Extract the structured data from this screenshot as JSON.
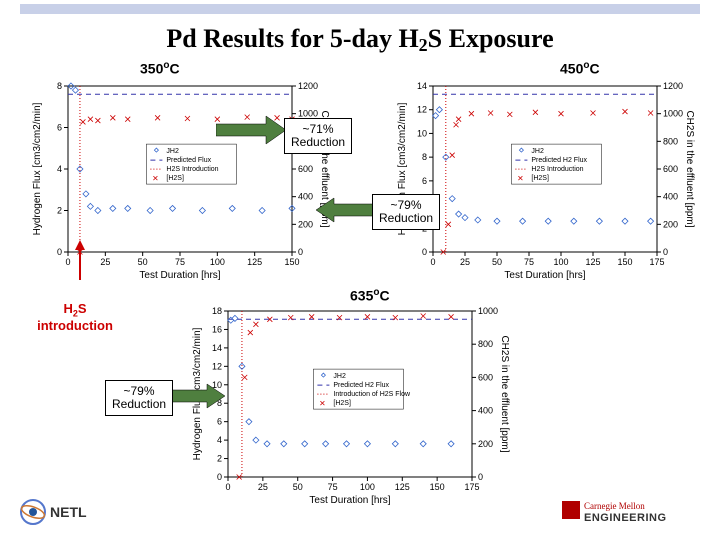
{
  "title_parts": {
    "prefix": "Pd Results for 5-day H",
    "sub": "2",
    "suffix": "S Exposure"
  },
  "temps": {
    "t350": "350",
    "t450": "450",
    "t635": "635",
    "degC": "C"
  },
  "callouts": {
    "r71": "~71%\nReduction",
    "r79a": "~79%\nReduction",
    "r79b": "~79%\nReduction"
  },
  "h2s_intro": {
    "line1": "H",
    "sub": "2",
    "line1b": "S",
    "line2": "introduction"
  },
  "chart_left": {
    "x_label": "Test Duration [hrs]",
    "y_left": "Hydrogen Flux [cm3/cm2/min]",
    "y_right": "CH2S in the effluent [ppm]",
    "x_ticks": [
      0,
      25,
      50,
      75,
      100,
      125,
      150
    ],
    "y_left_ticks": [
      0.0,
      2.0,
      4.0,
      6.0,
      8.0
    ],
    "y_right_ticks": [
      0,
      200,
      400,
      600,
      800,
      1000,
      1200
    ],
    "legend": [
      "JH2",
      "Predicted Flux",
      "H2S Introduction",
      "[H2S]"
    ],
    "flux_series": [
      [
        2,
        8.0
      ],
      [
        5,
        7.8
      ],
      [
        8,
        4.0
      ],
      [
        12,
        2.8
      ],
      [
        15,
        2.2
      ],
      [
        20,
        2.0
      ],
      [
        30,
        2.1
      ],
      [
        40,
        2.1
      ],
      [
        55,
        2.0
      ],
      [
        70,
        2.1
      ],
      [
        90,
        2.0
      ],
      [
        110,
        2.1
      ],
      [
        130,
        2.0
      ],
      [
        150,
        2.1
      ]
    ],
    "h2s_series": [
      [
        8,
        0
      ],
      [
        10,
        940
      ],
      [
        15,
        960
      ],
      [
        20,
        950
      ],
      [
        30,
        970
      ],
      [
        40,
        960
      ],
      [
        60,
        970
      ],
      [
        80,
        965
      ],
      [
        100,
        960
      ],
      [
        120,
        975
      ],
      [
        140,
        970
      ],
      [
        150,
        960
      ]
    ]
  },
  "chart_right": {
    "x_label": "Test Duration [hrs]",
    "y_left": "Hydrogen Flux [cm3/cm2/min]",
    "y_right": "CH2S in the effluent [ppm]",
    "x_ticks": [
      0,
      25,
      50,
      75,
      100,
      125,
      150,
      175
    ],
    "y_left_ticks": [
      0,
      2,
      4,
      6,
      8,
      10,
      12,
      14
    ],
    "y_right_ticks": [
      0,
      200,
      400,
      600,
      800,
      1000,
      1200
    ],
    "legend": [
      "JH2",
      "Predicted H2 Flux",
      "H2S Introduction",
      "[H2S]"
    ],
    "flux_series": [
      [
        2,
        11.5
      ],
      [
        5,
        12.0
      ],
      [
        10,
        8.0
      ],
      [
        15,
        4.5
      ],
      [
        20,
        3.2
      ],
      [
        25,
        2.9
      ],
      [
        35,
        2.7
      ],
      [
        50,
        2.6
      ],
      [
        70,
        2.6
      ],
      [
        90,
        2.6
      ],
      [
        110,
        2.6
      ],
      [
        130,
        2.6
      ],
      [
        150,
        2.6
      ],
      [
        170,
        2.6
      ]
    ],
    "h2s_series": [
      [
        8,
        0
      ],
      [
        12,
        200
      ],
      [
        15,
        700
      ],
      [
        18,
        920
      ],
      [
        20,
        960
      ],
      [
        30,
        1000
      ],
      [
        45,
        1005
      ],
      [
        60,
        995
      ],
      [
        80,
        1010
      ],
      [
        100,
        1000
      ],
      [
        125,
        1005
      ],
      [
        150,
        1015
      ],
      [
        170,
        1005
      ]
    ]
  },
  "chart_bottom": {
    "x_label": "Test Duration [hrs]",
    "y_left": "Hydrogen Flux [cm3/cm2/min]",
    "y_right": "CH2S in the effluent [ppm]",
    "x_ticks": [
      0,
      25,
      50,
      75,
      100,
      125,
      150,
      175
    ],
    "y_left_ticks": [
      0,
      2,
      4,
      6,
      8,
      10,
      12,
      14,
      16,
      18
    ],
    "y_right_ticks": [
      0,
      200,
      400,
      600,
      800,
      1000
    ],
    "legend": [
      "JH2",
      "Predicted H2 Flux",
      "Introduction of H2S Flow",
      "[H2S]"
    ],
    "flux_series": [
      [
        2,
        17.0
      ],
      [
        5,
        17.2
      ],
      [
        10,
        12.0
      ],
      [
        15,
        6.0
      ],
      [
        20,
        4.0
      ],
      [
        28,
        3.6
      ],
      [
        40,
        3.6
      ],
      [
        55,
        3.6
      ],
      [
        70,
        3.6
      ],
      [
        85,
        3.6
      ],
      [
        100,
        3.6
      ],
      [
        120,
        3.6
      ],
      [
        140,
        3.6
      ],
      [
        160,
        3.6
      ]
    ],
    "h2s_series": [
      [
        8,
        0
      ],
      [
        12,
        600
      ],
      [
        16,
        870
      ],
      [
        20,
        920
      ],
      [
        30,
        950
      ],
      [
        45,
        960
      ],
      [
        60,
        965
      ],
      [
        80,
        960
      ],
      [
        100,
        965
      ],
      [
        120,
        960
      ],
      [
        140,
        970
      ],
      [
        160,
        965
      ]
    ]
  },
  "colors": {
    "flux": "#3366cc",
    "h2s": "#cc0000",
    "dashed": "#3333aa",
    "topbar": "#c8d0e8"
  },
  "logos": {
    "netl": "NETL",
    "cmu1": "Carnegie Mellon",
    "cmu2": "ENGINEERING"
  }
}
